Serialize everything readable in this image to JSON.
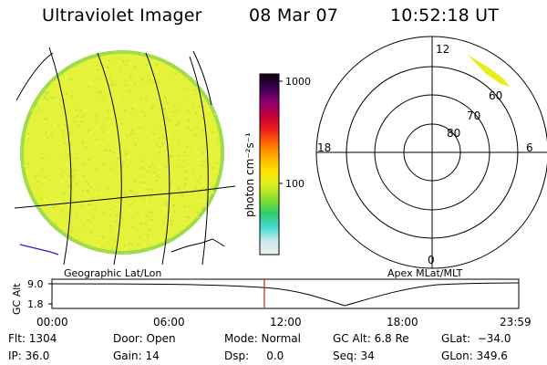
{
  "header": {
    "instrument": "Ultraviolet Imager",
    "date": "08 Mar 07",
    "time": "10:52:18 UT"
  },
  "colors": {
    "grid": "#000000",
    "disk_main": "#e4f23a",
    "disk_speckle": "#b5e23a",
    "disk_edge": "#9fdc4b",
    "coast": "#2020c0",
    "time_marker": "#cc2020"
  },
  "colorbar": {
    "label": "photon cm⁻²s⁻¹",
    "ticks": [
      "1000",
      "100"
    ],
    "scale": "log",
    "stops": [
      "#f0f0f0",
      "#c8e8ec",
      "#3fd9d0",
      "#33cc66",
      "#8ae02a",
      "#dcef22",
      "#ffe200",
      "#ffb000",
      "#ff6a00",
      "#ee1c1c",
      "#c4003a",
      "#8c0070",
      "#3a0050",
      "#0a0010"
    ]
  },
  "geo_panel": {
    "label": "Geographic Lat/Lon"
  },
  "polar_panel": {
    "label": "Apex MLat/MLT",
    "mlt_labels": {
      "top": "12",
      "left": "18",
      "right": "6",
      "bottom": "0"
    },
    "lat_labels": [
      "60",
      "70",
      "80"
    ]
  },
  "alt_panel": {
    "axis_label": "GC Alt",
    "y_ticks": [
      "9.0",
      "1.8"
    ],
    "x_ticks": [
      "00:00",
      "06:00",
      "12:00",
      "18:00",
      "23:59"
    ],
    "current_time_fraction": 0.455
  },
  "status": {
    "flt": "Flt: 1304",
    "ip": "IP: 36.0",
    "door": "Door: Open",
    "gain": "Gain: 14",
    "mode": "Mode: Normal",
    "dsp": "Dsp:     0.0",
    "gc_alt": "GC Alt: 6.8 Re",
    "seq": "Seq: 34",
    "glat": "GLat:  −34.0",
    "glon": "GLon: 349.6"
  }
}
